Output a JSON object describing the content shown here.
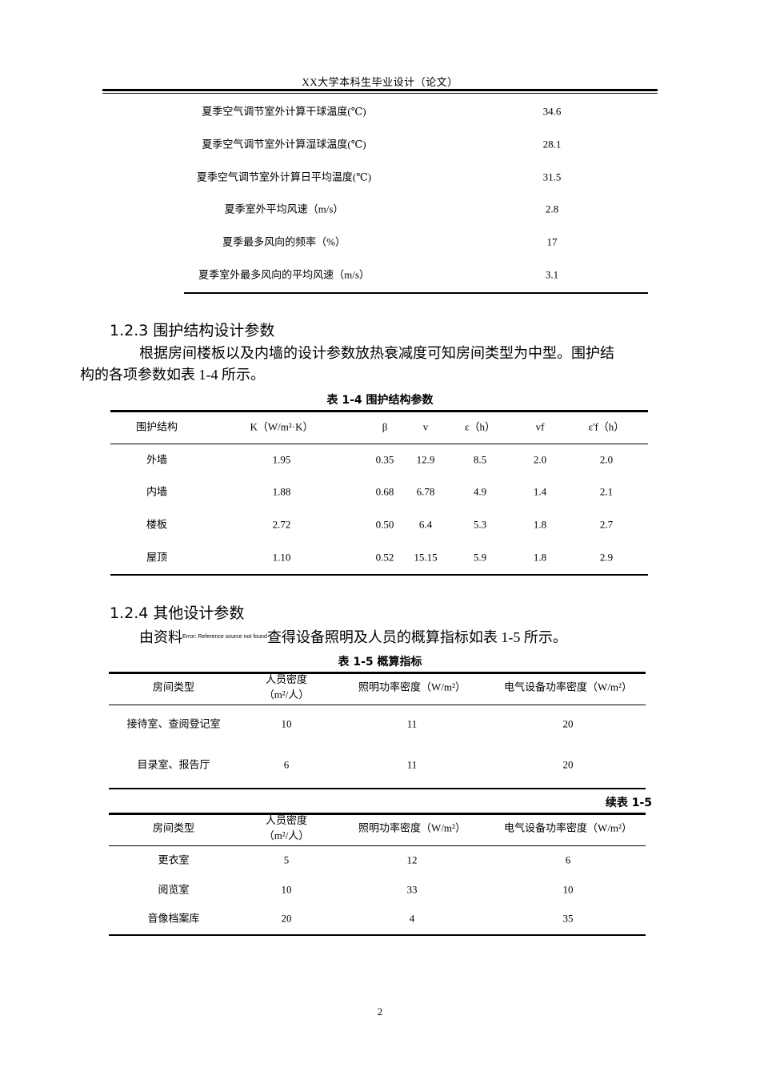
{
  "header": "XX大学本科生毕业设计（论文）",
  "climate_table": {
    "rows": [
      [
        "夏季空气调节室外计算干球温度(℃)",
        "34.6"
      ],
      [
        "夏季空气调节室外计算湿球温度(℃)",
        "28.1"
      ],
      [
        "夏季空气调节室外计算日平均温度(℃)",
        "31.5"
      ],
      [
        "夏季室外平均风速（m/s）",
        "2.8"
      ],
      [
        "夏季最多风向的频率（%）",
        "17"
      ],
      [
        "夏季室外最多风向的平均风速（m/s）",
        "3.1"
      ]
    ]
  },
  "section_123": {
    "heading": "1.2.3 围护结构设计参数",
    "para_line1": "根据房间楼板以及内墙的设计参数放热衰减度可知房间类型为中型。围护结",
    "para_line2": "构的各项参数如表 1-4 所示。",
    "caption": "表 1-4 围护结构参数",
    "columns": [
      "围护结构",
      "K（W/m²·K）",
      "β",
      "v",
      "ε（h）",
      "vf",
      "ε'f（h）"
    ],
    "rows": [
      [
        "外墙",
        "1.95",
        "0.35",
        "12.9",
        "8.5",
        "2.0",
        "2.0"
      ],
      [
        "内墙",
        "1.88",
        "0.68",
        "6.78",
        "4.9",
        "1.4",
        "2.1"
      ],
      [
        "楼板",
        "2.72",
        "0.50",
        "6.4",
        "5.3",
        "1.8",
        "2.7"
      ],
      [
        "屋顶",
        "1.10",
        "0.52",
        "15.15",
        "5.9",
        "1.8",
        "2.9"
      ]
    ]
  },
  "section_124": {
    "heading": "1.2.4 其他设计参数",
    "para_before": "由资料",
    "para_error": "Error: Reference source not found",
    "para_after": "查得设备照明及人员的概算指标如表 1-5 所示。",
    "caption": "表 1-5 概算指标",
    "columns": [
      "房间类型",
      "人员密度\n（m²/人）",
      "照明功率密度（W/m²）",
      "电气设备功率密度（W/m²）"
    ],
    "rows": [
      [
        "接待室、查阅登记室",
        "10",
        "11",
        "20"
      ],
      [
        "目录室、报告厅",
        "6",
        "11",
        "20"
      ]
    ],
    "continued_label": "续表 1-5",
    "continued_rows": [
      [
        "更衣室",
        "5",
        "12",
        "6"
      ],
      [
        "阅览室",
        "10",
        "33",
        "10"
      ],
      [
        "音像档案库",
        "20",
        "4",
        "35"
      ]
    ]
  },
  "page_number": "2"
}
